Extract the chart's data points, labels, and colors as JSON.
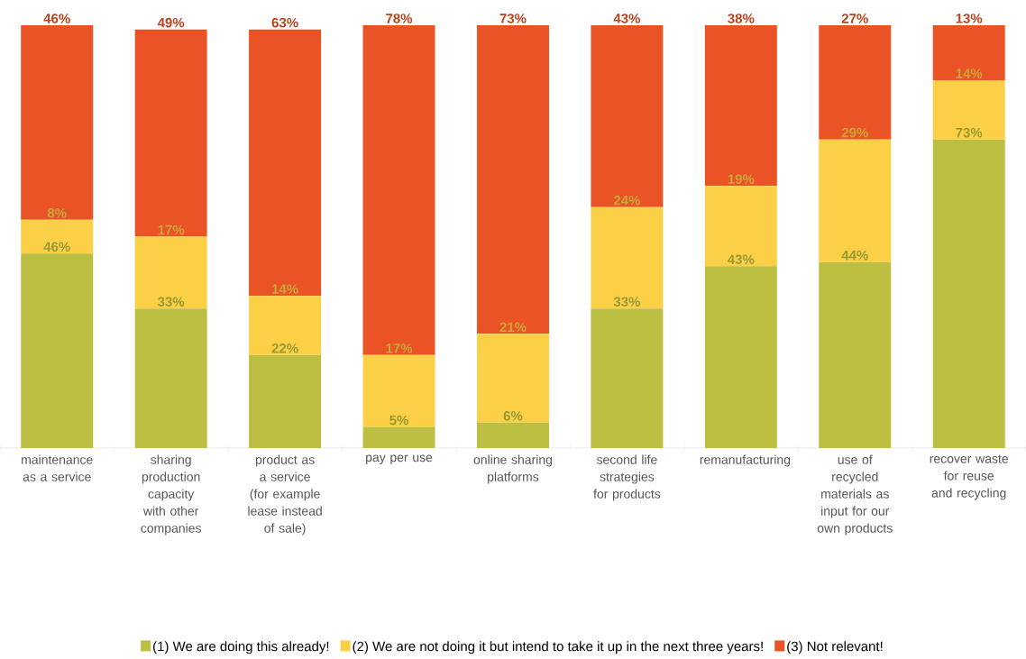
{
  "chart_data": {
    "type": "bar",
    "stacked": true,
    "legend": "bottom",
    "tick_labels": "x",
    "ylim": [
      0,
      100
    ],
    "categories": [
      "maintenance as a service",
      "sharing production capacity with other companies",
      "product as a service (for example lease instead of sale)",
      "pay per use",
      "online sharing platforms",
      "second life strategies for products",
      "remanufacturing",
      "use of recycled materials as input for our own products",
      "recover waste for reuse and recycling"
    ],
    "series": [
      {
        "name": "(1) We are doing this already!",
        "color": "#bdbf42",
        "values": [
          46,
          33,
          22,
          5,
          6,
          33,
          43,
          44,
          73
        ],
        "value_labels": [
          "46%",
          "33%",
          "22%",
          "5%",
          "6%",
          "33%",
          "43%",
          "44%",
          "73%"
        ]
      },
      {
        "name": "(2) We are not doing it but intend to take it up in the next three years!",
        "color": "#fcd046",
        "values": [
          8,
          17,
          14,
          17,
          21,
          24,
          19,
          29,
          14
        ],
        "value_labels": [
          "8%",
          "17%",
          "14%",
          "17%",
          "21%",
          "24%",
          "19%",
          "29%",
          "14%"
        ]
      },
      {
        "name": "(3) Not relevant!",
        "color": "#e95325",
        "values": [
          46,
          49,
          63,
          78,
          73,
          43,
          38,
          27,
          13
        ],
        "value_labels": [
          "46%",
          "49%",
          "63%",
          "78%",
          "73%",
          "43%",
          "38%",
          "27%",
          "13%"
        ]
      }
    ]
  }
}
